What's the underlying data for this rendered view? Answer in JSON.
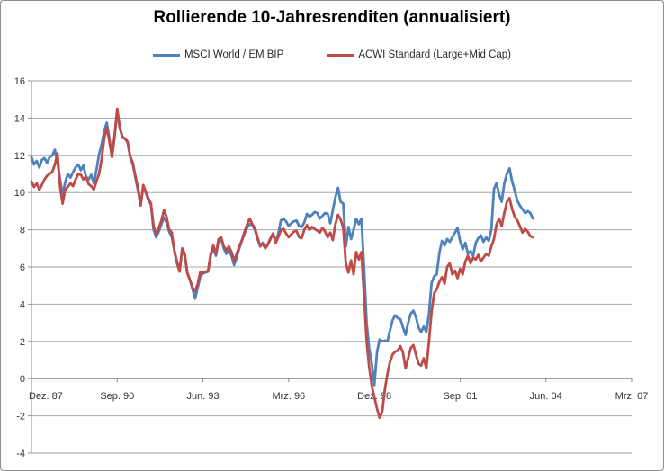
{
  "chart_data": {
    "type": "line",
    "title": "Rollierende 10-Jahresrenditen (annualisiert)",
    "xlabel": "",
    "ylabel": "",
    "ylim": [
      -4,
      16
    ],
    "y_tick_step": 2,
    "y_tick_labels": [
      "16",
      "14",
      "12",
      "10",
      "8",
      "6",
      "4",
      "2",
      "0",
      "-2",
      "-4"
    ],
    "x_tick_labels": [
      "Dez. 87",
      "Sep. 90",
      "Jun. 93",
      "Mrz. 96",
      "Dez. 98",
      "Sep. 01",
      "Jun. 04",
      "Mrz. 07"
    ],
    "x_tick_positions_months": [
      0,
      33,
      66,
      99,
      132,
      165,
      198,
      231
    ],
    "x_axis_span_months": 231,
    "x_unit": "months since Dez. 87 (monthly data)",
    "grid": "horizontal-only",
    "legend_position": "top",
    "colors": {
      "series_msci": "#4F81BD",
      "series_acwi": "#BE4B48",
      "gridline": "#A6A6A6",
      "axis": "#8C8C8C",
      "title_text": "#000000",
      "tick_text": "#333333"
    },
    "series": [
      {
        "name": "MSCI World / EM BIP",
        "start_month": 0,
        "values": [
          11.9,
          11.5,
          11.7,
          11.35,
          11.75,
          11.85,
          11.6,
          11.9,
          12.0,
          12.3,
          11.6,
          10.7,
          9.85,
          10.55,
          11.0,
          10.8,
          11.1,
          11.35,
          11.5,
          11.2,
          11.45,
          10.85,
          10.7,
          10.95,
          10.5,
          11.2,
          12.05,
          12.6,
          13.3,
          13.75,
          12.9,
          11.95,
          13.0,
          14.35,
          13.45,
          12.95,
          12.9,
          12.75,
          11.9,
          11.5,
          10.8,
          10.1,
          9.35,
          10.3,
          10.0,
          9.6,
          9.35,
          8.0,
          7.6,
          7.9,
          8.3,
          8.65,
          8.4,
          7.9,
          7.6,
          6.9,
          6.3,
          5.8,
          6.9,
          6.6,
          5.7,
          5.3,
          4.8,
          4.3,
          4.9,
          5.5,
          5.65,
          5.7,
          5.75,
          6.6,
          7.0,
          6.6,
          7.4,
          7.5,
          7.0,
          6.7,
          6.9,
          6.6,
          6.1,
          6.5,
          7.0,
          7.4,
          7.8,
          8.1,
          8.3,
          8.25,
          8.0,
          7.5,
          7.15,
          7.3,
          7.05,
          7.25,
          7.55,
          7.8,
          7.35,
          7.8,
          8.5,
          8.6,
          8.45,
          8.2,
          8.35,
          8.45,
          8.5,
          8.2,
          8.15,
          8.4,
          8.85,
          8.7,
          8.8,
          8.95,
          8.9,
          8.6,
          8.75,
          8.9,
          8.85,
          8.35,
          9.05,
          9.75,
          10.25,
          9.5,
          9.4,
          7.1,
          8.15,
          7.5,
          8.0,
          8.6,
          8.3,
          8.6,
          6.0,
          3.0,
          1.6,
          0.8,
          -0.35,
          1.4,
          2.1,
          2.0,
          2.05,
          2.0,
          2.6,
          3.15,
          3.4,
          3.25,
          3.2,
          2.75,
          2.35,
          3.0,
          3.5,
          3.65,
          3.3,
          2.75,
          2.5,
          2.8,
          2.5,
          3.5,
          5.15,
          5.5,
          5.6,
          6.75,
          7.4,
          7.15,
          7.5,
          7.35,
          7.6,
          7.85,
          8.1,
          7.4,
          6.95,
          7.3,
          6.7,
          6.85,
          6.6,
          7.3,
          7.55,
          7.7,
          7.35,
          7.6,
          7.4,
          8.0,
          10.2,
          10.5,
          9.9,
          9.5,
          10.5,
          11.0,
          11.3,
          10.6,
          10.1,
          9.55,
          9.3,
          9.1,
          8.9,
          9.0,
          8.9,
          8.6
        ]
      },
      {
        "name": "ACWI Standard (Large+Mid Cap)",
        "start_month": 0,
        "values": [
          10.6,
          10.3,
          10.5,
          10.15,
          10.4,
          10.7,
          10.9,
          11.0,
          11.1,
          11.5,
          12.1,
          10.3,
          9.4,
          10.15,
          10.3,
          10.5,
          10.35,
          10.7,
          11.0,
          10.95,
          10.7,
          10.85,
          10.45,
          10.35,
          10.15,
          10.6,
          11.0,
          11.8,
          12.9,
          13.5,
          12.75,
          11.9,
          13.1,
          14.5,
          13.5,
          13.0,
          12.9,
          12.7,
          11.95,
          11.6,
          10.9,
          10.25,
          9.3,
          10.4,
          10.05,
          9.7,
          9.4,
          8.2,
          7.75,
          8.1,
          8.5,
          9.05,
          8.7,
          8.0,
          7.85,
          6.85,
          6.2,
          5.75,
          7.0,
          6.7,
          5.65,
          5.3,
          4.9,
          4.7,
          5.1,
          5.75,
          5.7,
          5.75,
          5.8,
          6.7,
          7.15,
          6.7,
          7.5,
          7.6,
          7.1,
          6.9,
          7.1,
          6.8,
          6.35,
          6.7,
          7.1,
          7.45,
          7.9,
          8.3,
          8.6,
          8.3,
          8.1,
          7.6,
          7.1,
          7.25,
          7.0,
          7.2,
          7.5,
          7.8,
          7.3,
          7.6,
          8.0,
          8.05,
          7.8,
          7.6,
          7.75,
          7.9,
          7.95,
          7.6,
          7.55,
          8.0,
          8.25,
          8.0,
          8.15,
          8.05,
          7.95,
          7.85,
          8.1,
          7.9,
          7.6,
          7.85,
          7.45,
          8.3,
          8.8,
          8.55,
          8.1,
          6.2,
          5.7,
          6.35,
          5.6,
          6.8,
          6.4,
          6.8,
          4.5,
          2.0,
          0.6,
          -0.4,
          -1.0,
          -1.6,
          -2.1,
          -1.8,
          -0.6,
          0.25,
          0.9,
          1.3,
          1.45,
          1.5,
          1.75,
          1.4,
          0.55,
          1.1,
          1.65,
          1.8,
          1.3,
          0.8,
          0.7,
          1.1,
          0.55,
          2.0,
          3.6,
          4.6,
          4.8,
          5.2,
          5.45,
          5.1,
          6.0,
          6.2,
          5.6,
          5.8,
          5.4,
          5.9,
          5.6,
          6.3,
          6.6,
          6.2,
          6.5,
          6.4,
          6.65,
          6.3,
          6.5,
          6.7,
          6.6,
          7.1,
          7.5,
          8.3,
          8.6,
          8.2,
          8.9,
          9.5,
          9.7,
          9.1,
          8.7,
          8.5,
          8.2,
          7.85,
          8.05,
          7.9,
          7.65,
          7.6
        ]
      }
    ]
  },
  "legend": {
    "items": [
      {
        "label": "MSCI World / EM BIP",
        "color": "#4F81BD"
      },
      {
        "label": "ACWI Standard (Large+Mid Cap)",
        "color": "#BE4B48"
      }
    ]
  }
}
